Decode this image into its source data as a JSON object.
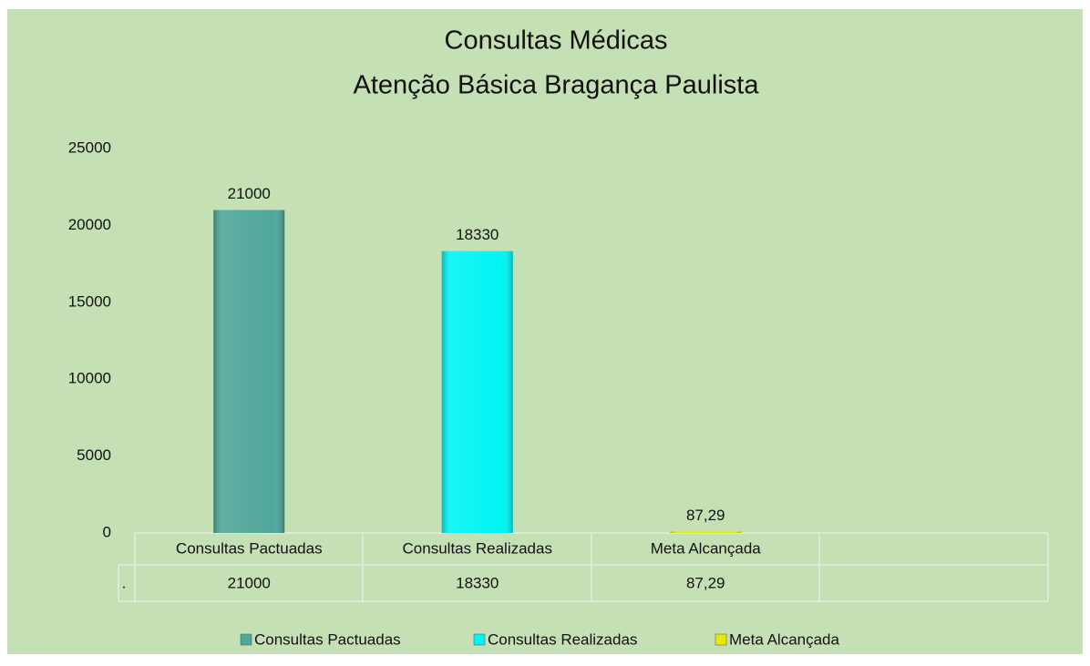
{
  "chart_data": {
    "type": "bar",
    "title": "Consultas Médicas",
    "subtitle": "Atenção Básica  Bragança Paulista",
    "categories": [
      "Consultas Pactuadas",
      "Consultas  Realizadas",
      "Meta Alcançada"
    ],
    "series": [
      {
        "name": ".",
        "values": [
          21000,
          18330,
          87.29
        ],
        "value_labels": [
          "21000",
          "18330",
          "87,29"
        ]
      }
    ],
    "colors": [
      "#4fa69a",
      "#00f4f4",
      "#e8e800"
    ],
    "ylim": [
      0,
      25000
    ],
    "yticks": [
      0,
      5000,
      10000,
      15000,
      20000,
      25000
    ],
    "grid": false,
    "legend": "bottom"
  }
}
